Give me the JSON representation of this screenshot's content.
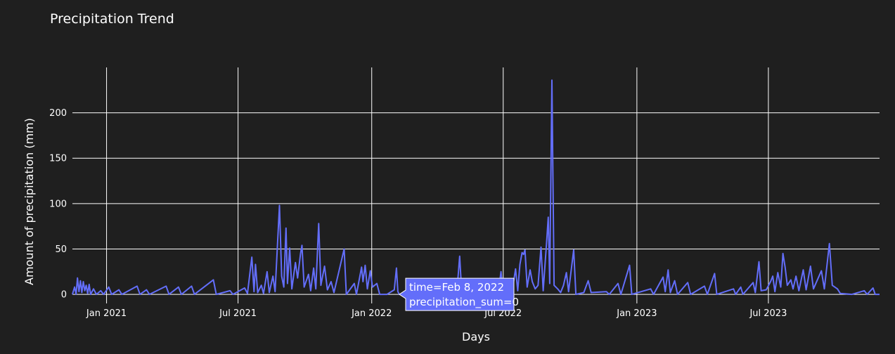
{
  "chart_data": {
    "type": "line",
    "title": "Precipitation Trend",
    "xlabel": "Days",
    "ylabel": "Amount of precipitation (mm)",
    "xlim": [
      "2020-11-15",
      "2023-12-01"
    ],
    "ylim": [
      -10,
      250
    ],
    "x_tick_labels": [
      "Jan 2021",
      "Jul 2021",
      "Jan 2022",
      "Jul 2022",
      "Jan 2023",
      "Jul 2023"
    ],
    "x_ticks": [
      "2021-01-01",
      "2021-07-01",
      "2022-01-01",
      "2022-07-01",
      "2023-01-01",
      "2023-07-01"
    ],
    "y_ticks": [
      0,
      50,
      100,
      150,
      200
    ],
    "grid": true,
    "line_color": "#636efa",
    "series": [
      {
        "points": [
          [
            "2020-11-15",
            0
          ],
          [
            "2020-11-18",
            8
          ],
          [
            "2020-11-20",
            0
          ],
          [
            "2020-11-22",
            18
          ],
          [
            "2020-11-24",
            3
          ],
          [
            "2020-11-26",
            15
          ],
          [
            "2020-11-28",
            2
          ],
          [
            "2020-11-30",
            14
          ],
          [
            "2020-12-02",
            4
          ],
          [
            "2020-12-04",
            10
          ],
          [
            "2020-12-06",
            1
          ],
          [
            "2020-12-08",
            11
          ],
          [
            "2020-12-10",
            0
          ],
          [
            "2020-12-14",
            6
          ],
          [
            "2020-12-18",
            0
          ],
          [
            "2020-12-24",
            4
          ],
          [
            "2020-12-28",
            0
          ],
          [
            "2021-01-04",
            8
          ],
          [
            "2021-01-08",
            0
          ],
          [
            "2021-01-18",
            5
          ],
          [
            "2021-01-22",
            0
          ],
          [
            "2021-02-12",
            9
          ],
          [
            "2021-02-16",
            0
          ],
          [
            "2021-02-25",
            5
          ],
          [
            "2021-03-01",
            0
          ],
          [
            "2021-03-24",
            9
          ],
          [
            "2021-03-28",
            0
          ],
          [
            "2021-04-10",
            8
          ],
          [
            "2021-04-14",
            0
          ],
          [
            "2021-04-28",
            9
          ],
          [
            "2021-05-02",
            0
          ],
          [
            "2021-05-28",
            16
          ],
          [
            "2021-06-01",
            0
          ],
          [
            "2021-06-20",
            4
          ],
          [
            "2021-06-24",
            0
          ],
          [
            "2021-07-10",
            7
          ],
          [
            "2021-07-14",
            1
          ],
          [
            "2021-07-20",
            41
          ],
          [
            "2021-07-23",
            3
          ],
          [
            "2021-07-25",
            33
          ],
          [
            "2021-07-28",
            2
          ],
          [
            "2021-08-02",
            10
          ],
          [
            "2021-08-05",
            1
          ],
          [
            "2021-08-10",
            25
          ],
          [
            "2021-08-13",
            2
          ],
          [
            "2021-08-18",
            20
          ],
          [
            "2021-08-21",
            3
          ],
          [
            "2021-08-27",
            98
          ],
          [
            "2021-08-30",
            20
          ],
          [
            "2021-09-02",
            8
          ],
          [
            "2021-09-05",
            73
          ],
          [
            "2021-09-07",
            12
          ],
          [
            "2021-09-10",
            51
          ],
          [
            "2021-09-13",
            6
          ],
          [
            "2021-09-18",
            35
          ],
          [
            "2021-09-21",
            18
          ],
          [
            "2021-09-25",
            45
          ],
          [
            "2021-09-27",
            54
          ],
          [
            "2021-09-30",
            8
          ],
          [
            "2021-10-06",
            22
          ],
          [
            "2021-10-09",
            4
          ],
          [
            "2021-10-13",
            29
          ],
          [
            "2021-10-16",
            6
          ],
          [
            "2021-10-20",
            78
          ],
          [
            "2021-10-23",
            10
          ],
          [
            "2021-10-28",
            31
          ],
          [
            "2021-11-01",
            5
          ],
          [
            "2021-11-06",
            14
          ],
          [
            "2021-11-10",
            2
          ],
          [
            "2021-11-24",
            50
          ],
          [
            "2021-11-27",
            0
          ],
          [
            "2021-12-08",
            12
          ],
          [
            "2021-12-11",
            0
          ],
          [
            "2021-12-18",
            30
          ],
          [
            "2021-12-20",
            14
          ],
          [
            "2021-12-23",
            32
          ],
          [
            "2021-12-26",
            6
          ],
          [
            "2021-12-30",
            26
          ],
          [
            "2022-01-02",
            8
          ],
          [
            "2022-01-08",
            12
          ],
          [
            "2022-01-12",
            0
          ],
          [
            "2022-01-22",
            0
          ],
          [
            "2022-02-01",
            5
          ],
          [
            "2022-02-04",
            29
          ],
          [
            "2022-02-06",
            3
          ],
          [
            "2022-02-08",
            0
          ],
          [
            "2022-02-20",
            0
          ],
          [
            "2022-04-28",
            0
          ],
          [
            "2022-05-02",
            42
          ],
          [
            "2022-05-05",
            0
          ],
          [
            "2022-06-24",
            0
          ],
          [
            "2022-06-28",
            25
          ],
          [
            "2022-07-01",
            0
          ],
          [
            "2022-07-14",
            7
          ],
          [
            "2022-07-18",
            28
          ],
          [
            "2022-07-21",
            4
          ],
          [
            "2022-07-24",
            33
          ],
          [
            "2022-07-27",
            46
          ],
          [
            "2022-07-29",
            44
          ],
          [
            "2022-07-31",
            49
          ],
          [
            "2022-08-03",
            8
          ],
          [
            "2022-08-07",
            27
          ],
          [
            "2022-08-10",
            14
          ],
          [
            "2022-08-14",
            6
          ],
          [
            "2022-08-18",
            10
          ],
          [
            "2022-08-22",
            52
          ],
          [
            "2022-08-25",
            4
          ],
          [
            "2022-08-30",
            60
          ],
          [
            "2022-09-01",
            85
          ],
          [
            "2022-09-03",
            12
          ],
          [
            "2022-09-06",
            236
          ],
          [
            "2022-09-09",
            10
          ],
          [
            "2022-09-14",
            6
          ],
          [
            "2022-09-18",
            2
          ],
          [
            "2022-09-22",
            10
          ],
          [
            "2022-09-26",
            24
          ],
          [
            "2022-09-29",
            3
          ],
          [
            "2022-10-06",
            49
          ],
          [
            "2022-10-09",
            0
          ],
          [
            "2022-10-20",
            2
          ],
          [
            "2022-10-26",
            15
          ],
          [
            "2022-10-30",
            2
          ],
          [
            "2022-11-20",
            3
          ],
          [
            "2022-11-24",
            0
          ],
          [
            "2022-12-06",
            12
          ],
          [
            "2022-12-10",
            0
          ],
          [
            "2022-12-22",
            32
          ],
          [
            "2022-12-25",
            0
          ],
          [
            "2023-01-20",
            6
          ],
          [
            "2023-01-24",
            0
          ],
          [
            "2023-02-06",
            19
          ],
          [
            "2023-02-09",
            3
          ],
          [
            "2023-02-13",
            27
          ],
          [
            "2023-02-16",
            2
          ],
          [
            "2023-02-22",
            15
          ],
          [
            "2023-02-26",
            0
          ],
          [
            "2023-03-12",
            13
          ],
          [
            "2023-03-16",
            0
          ],
          [
            "2023-04-04",
            9
          ],
          [
            "2023-04-08",
            0
          ],
          [
            "2023-04-18",
            23
          ],
          [
            "2023-04-21",
            0
          ],
          [
            "2023-05-14",
            6
          ],
          [
            "2023-05-17",
            0
          ],
          [
            "2023-05-24",
            8
          ],
          [
            "2023-05-27",
            0
          ],
          [
            "2023-06-10",
            13
          ],
          [
            "2023-06-13",
            2
          ],
          [
            "2023-06-18",
            36
          ],
          [
            "2023-06-21",
            4
          ],
          [
            "2023-06-28",
            5
          ],
          [
            "2023-07-04",
            14
          ],
          [
            "2023-07-07",
            20
          ],
          [
            "2023-07-10",
            3
          ],
          [
            "2023-07-14",
            24
          ],
          [
            "2023-07-18",
            8
          ],
          [
            "2023-07-21",
            45
          ],
          [
            "2023-07-24",
            30
          ],
          [
            "2023-07-27",
            10
          ],
          [
            "2023-08-01",
            16
          ],
          [
            "2023-08-04",
            6
          ],
          [
            "2023-08-08",
            20
          ],
          [
            "2023-08-12",
            4
          ],
          [
            "2023-08-18",
            27
          ],
          [
            "2023-08-22",
            5
          ],
          [
            "2023-08-28",
            31
          ],
          [
            "2023-09-01",
            6
          ],
          [
            "2023-09-12",
            26
          ],
          [
            "2023-09-16",
            6
          ],
          [
            "2023-09-23",
            56
          ],
          [
            "2023-09-27",
            10
          ],
          [
            "2023-10-04",
            6
          ],
          [
            "2023-10-08",
            1
          ],
          [
            "2023-10-24",
            0
          ],
          [
            "2023-11-10",
            4
          ],
          [
            "2023-11-14",
            0
          ],
          [
            "2023-11-22",
            7
          ],
          [
            "2023-11-25",
            0
          ],
          [
            "2023-12-01",
            0
          ]
        ]
      }
    ],
    "hover": {
      "x": "2022-02-08",
      "y": 0,
      "lines": [
        "time=Feb 8, 2022",
        "precipitation_sum=0"
      ],
      "color": "#636efa"
    }
  }
}
